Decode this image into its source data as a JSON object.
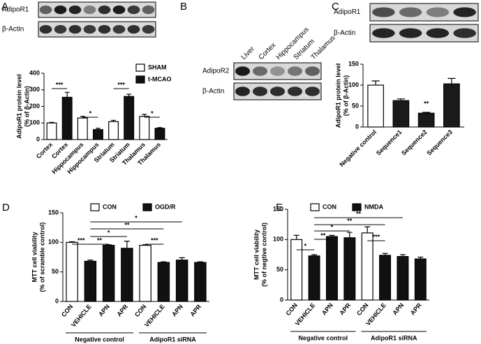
{
  "chart_data": [
    {
      "type": "bar",
      "panel": "A",
      "blot": {
        "rows": [
          "AdipoR1",
          "β-Actin"
        ]
      },
      "y_label": [
        "AdipoR1 protein level",
        "(% of β-Actin)"
      ],
      "categories": [
        "Cortex",
        "Cortex",
        "Hippocampus",
        "Hippocampus",
        "Striatum",
        "Striatum",
        "Thalamus",
        "Thalamus"
      ],
      "series": [
        {
          "name": "SHAM",
          "color": "#ffffff",
          "values": [
            100,
            null,
            130,
            null,
            108,
            null,
            140,
            null
          ],
          "errors": [
            4,
            null,
            10,
            null,
            8,
            null,
            12,
            null
          ]
        },
        {
          "name": "t-MCAO",
          "color": "#111111",
          "values": [
            null,
            255,
            null,
            60,
            null,
            260,
            null,
            68
          ],
          "errors": [
            null,
            30,
            null,
            8,
            null,
            14,
            null,
            4
          ]
        }
      ],
      "ylim": [
        0,
        400
      ],
      "yticks": [
        0,
        100,
        200,
        300,
        400
      ],
      "annotations": [
        "***",
        "*",
        "***",
        "*"
      ]
    },
    {
      "type": "blot",
      "panel": "B",
      "blot": {
        "lanes": [
          "Liver",
          "Cortex",
          "Hippocampus",
          "Striatum",
          "Thalamus"
        ],
        "rows": [
          "AdipoR2",
          "β-Actin"
        ]
      }
    },
    {
      "type": "bar",
      "panel": "C",
      "blot": {
        "rows": [
          "AdipoR1",
          "β-Actin"
        ]
      },
      "y_label": [
        "AdipoR1 protein level",
        "(% of β-Actin)"
      ],
      "categories": [
        "Negative control",
        "Sequence1",
        "Sequence2",
        "Sequence3"
      ],
      "series": [
        {
          "color": "#ffffff",
          "values": [
            100,
            null,
            null,
            null
          ],
          "errors": [
            10,
            null,
            null,
            null
          ]
        },
        {
          "color": "#1a1a1a",
          "values": [
            null,
            63,
            33,
            103
          ],
          "errors": [
            null,
            4,
            2,
            13
          ]
        }
      ],
      "ylim": [
        0,
        150
      ],
      "yticks": [
        0,
        50,
        100,
        150
      ],
      "annotations": [
        "**"
      ]
    },
    {
      "type": "bar",
      "panel": "D",
      "y_label": [
        "MTT cell viability",
        "(% of scramble control)"
      ],
      "categories": [
        "CON",
        "VEHICLE",
        "APN",
        "APR",
        "CON",
        "VEHICLE",
        "APN",
        "APR"
      ],
      "groups": [
        "Negative control",
        "AdipoR1 siRNA"
      ],
      "series": [
        {
          "name": "CON",
          "color": "#ffffff",
          "values": [
            100,
            null,
            null,
            null,
            95,
            null,
            null,
            null
          ],
          "errors": [
            1,
            null,
            null,
            null,
            1,
            null,
            null,
            null
          ]
        },
        {
          "name": "OGD/R",
          "color": "#111111",
          "values": [
            null,
            68,
            95,
            90,
            null,
            66,
            70,
            66
          ],
          "errors": [
            null,
            2,
            1,
            12,
            null,
            1,
            4,
            1
          ]
        }
      ],
      "ylim": [
        0,
        150
      ],
      "yticks": [
        0,
        50,
        100,
        150
      ],
      "annotations": [
        "***",
        "**",
        "*",
        "**",
        "*",
        "***"
      ]
    },
    {
      "type": "bar",
      "panel": "E",
      "y_label": [
        "MTT cell viability",
        "(% of negtive control)"
      ],
      "categories": [
        "CON",
        "VEHICLE",
        "APN",
        "APR",
        "CON",
        "VEHICLE",
        "APN",
        "APR"
      ],
      "groups": [
        "Negative control",
        "AdipoR1 siRNA"
      ],
      "series": [
        {
          "name": "CON",
          "color": "#ffffff",
          "values": [
            100,
            null,
            null,
            null,
            111,
            null,
            null,
            null
          ],
          "errors": [
            7,
            null,
            null,
            null,
            10,
            null,
            null,
            null
          ]
        },
        {
          "name": "NMDA",
          "color": "#111111",
          "values": [
            null,
            73,
            105,
            103,
            null,
            74,
            72,
            68
          ],
          "errors": [
            null,
            2,
            2,
            9,
            null,
            3,
            3,
            3
          ]
        }
      ],
      "ylim": [
        0,
        150
      ],
      "yticks": [
        0,
        50,
        100,
        150
      ],
      "annotations": [
        "*",
        "**",
        "*",
        "**",
        "**",
        "***"
      ]
    }
  ]
}
